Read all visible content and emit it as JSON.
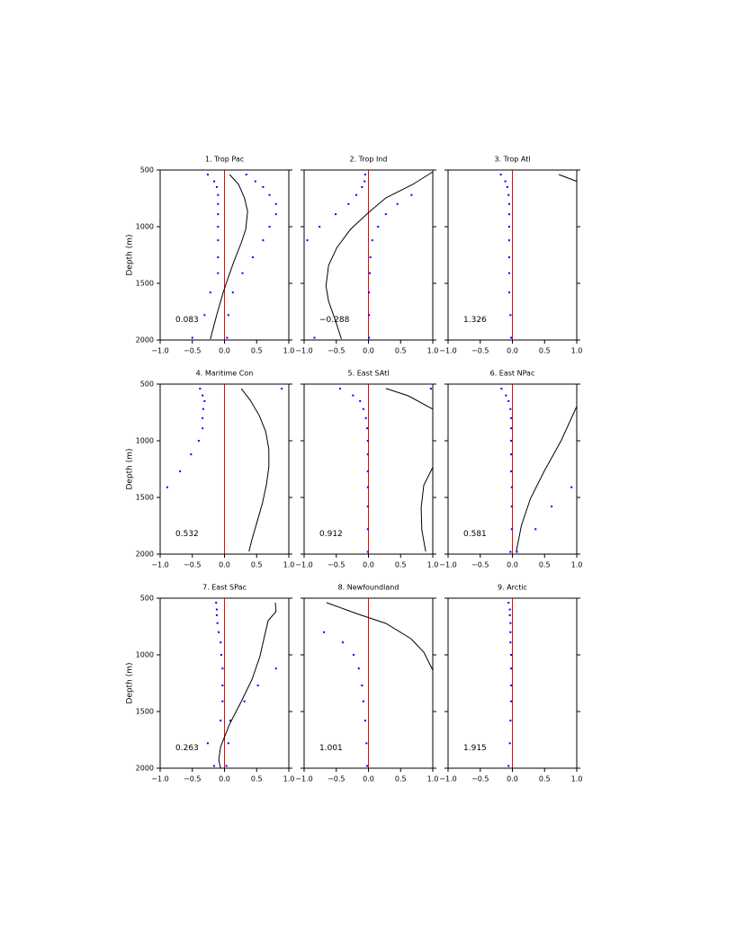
{
  "chart_data": [
    {
      "type": "profile",
      "title": "1. Trop Pac",
      "ylabel": "Depth (m)",
      "annotation": "0.083",
      "xlim": [
        -1,
        1
      ],
      "ylim": [
        2000,
        500
      ],
      "xticks": [
        {
          "value": -1,
          "label": "−1.0"
        },
        {
          "value": -0.5,
          "label": "−0.5"
        },
        {
          "value": 0,
          "label": "0.0"
        },
        {
          "value": 0.5,
          "label": "0.5"
        },
        {
          "value": 1,
          "label": "1.0"
        }
      ],
      "yticks": [
        500,
        1000,
        1500,
        2000
      ],
      "reference_line": {
        "x": 0,
        "color": "#ff0000"
      },
      "series": [
        {
          "style": "dots",
          "color": "#0000ff",
          "x": [
            -0.26,
            -0.16,
            -0.12,
            -0.1,
            -0.1,
            -0.1,
            -0.1,
            -0.1,
            -0.1,
            -0.1,
            -0.22,
            -0.31,
            -0.5
          ],
          "y": [
            540,
            600,
            650,
            720,
            800,
            890,
            1000,
            1120,
            1270,
            1410,
            1580,
            1780,
            1980
          ]
        },
        {
          "style": "dots",
          "color": "#0000ff",
          "x": [
            0.34,
            0.48,
            0.6,
            0.7,
            0.8,
            0.8,
            0.7,
            0.6,
            0.44,
            0.28,
            0.13,
            0.06,
            0.04
          ],
          "y": [
            540,
            600,
            650,
            720,
            800,
            890,
            1000,
            1120,
            1270,
            1410,
            1580,
            1780,
            1980
          ]
        },
        {
          "style": "line",
          "color": "#000000",
          "x": [
            0.08,
            0.22,
            0.31,
            0.36,
            0.33,
            0.26,
            0.15,
            0.05,
            -0.02,
            -0.12,
            -0.22
          ],
          "y": [
            540,
            627,
            746,
            865,
            1024,
            1143,
            1302,
            1460,
            1579,
            1778,
            1992
          ]
        }
      ]
    },
    {
      "type": "profile",
      "title": "2. Trop Ind",
      "annotation": "−0.288",
      "xlim": [
        -1,
        1
      ],
      "ylim": [
        2000,
        500
      ],
      "xticks": [
        {
          "value": -1,
          "label": "−1.0"
        },
        {
          "value": -0.5,
          "label": "−0.5"
        },
        {
          "value": 0,
          "label": "0.0"
        },
        {
          "value": 0.5,
          "label": "0.5"
        },
        {
          "value": 1,
          "label": "1.0"
        }
      ],
      "yticks": [
        500,
        1000,
        1500,
        2000
      ],
      "reference_line": {
        "x": 0,
        "color": "#ff0000"
      },
      "series": [
        {
          "style": "dots",
          "color": "#0000ff",
          "x": [
            -0.05,
            -0.06,
            -0.1,
            -0.19,
            -0.31,
            -0.51,
            -0.76,
            -0.95,
            0.03,
            0.02,
            0.01,
            0.01,
            -0.84
          ],
          "y": [
            540,
            600,
            650,
            720,
            800,
            890,
            1000,
            1120,
            1270,
            1410,
            1580,
            1780,
            1980
          ]
        },
        {
          "style": "dots",
          "color": "#0000ff",
          "x": [
            0.67,
            0.45,
            0.27,
            0.15,
            0.06,
            0.01
          ],
          "y": [
            720,
            800,
            890,
            1000,
            1120,
            1980
          ]
        },
        {
          "style": "line",
          "color": "#000000",
          "x": [
            1.0,
            0.69,
            0.27,
            -0.01,
            -0.28,
            -0.49,
            -0.62,
            -0.66,
            -0.62,
            -0.52,
            -0.42
          ],
          "y": [
            516,
            627,
            746,
            881,
            1024,
            1183,
            1341,
            1524,
            1659,
            1817,
            1992
          ]
        }
      ]
    },
    {
      "type": "profile",
      "title": "3. Trop Atl",
      "annotation": "1.326",
      "xlim": [
        -1,
        1
      ],
      "ylim": [
        2000,
        500
      ],
      "xticks": [
        {
          "value": -1,
          "label": "−1.0"
        },
        {
          "value": -0.5,
          "label": "−0.5"
        },
        {
          "value": 0,
          "label": "0.0"
        },
        {
          "value": 0.5,
          "label": "0.5"
        },
        {
          "value": 1,
          "label": "1.0"
        }
      ],
      "yticks": [
        500,
        1000,
        1500,
        2000
      ],
      "reference_line": {
        "x": 0,
        "color": "#ff0000"
      },
      "series": [
        {
          "style": "dots",
          "color": "#0000ff",
          "x": [
            -0.18,
            -0.11,
            -0.08,
            -0.06,
            -0.05,
            -0.05,
            -0.05,
            -0.05,
            -0.05,
            -0.05,
            -0.05,
            -0.03,
            -0.02
          ],
          "y": [
            540,
            600,
            650,
            720,
            800,
            890,
            1000,
            1120,
            1270,
            1410,
            1580,
            1780,
            1980
          ]
        },
        {
          "style": "line",
          "color": "#000000",
          "x": [
            0.72,
            1.0
          ],
          "y": [
            540,
            600
          ]
        }
      ]
    },
    {
      "type": "profile",
      "title": "4. Maritime Con",
      "ylabel": "Depth (m)",
      "annotation": "0.532",
      "xlim": [
        -1,
        1
      ],
      "ylim": [
        2000,
        500
      ],
      "xticks": [
        {
          "value": -1,
          "label": "−1.0"
        },
        {
          "value": -0.5,
          "label": "−0.5"
        },
        {
          "value": 0,
          "label": "0.0"
        },
        {
          "value": 0.5,
          "label": "0.5"
        },
        {
          "value": 1,
          "label": "1.0"
        }
      ],
      "yticks": [
        500,
        1000,
        1500,
        2000
      ],
      "reference_line": {
        "x": 0,
        "color": "#ff0000"
      },
      "series": [
        {
          "style": "dots",
          "color": "#0000ff",
          "x": [
            -0.38,
            -0.34,
            -0.31,
            -0.33,
            -0.34,
            -0.34,
            -0.4,
            -0.52,
            -0.69,
            -0.89
          ],
          "y": [
            540,
            600,
            650,
            720,
            800,
            890,
            1000,
            1120,
            1270,
            1410
          ]
        },
        {
          "style": "dots",
          "color": "#0000ff",
          "x": [
            0.89
          ],
          "y": [
            540
          ]
        },
        {
          "style": "line",
          "color": "#000000",
          "x": [
            0.26,
            0.4,
            0.54,
            0.64,
            0.69,
            0.69,
            0.65,
            0.59,
            0.51,
            0.43,
            0.38
          ],
          "y": [
            539,
            642,
            776,
            918,
            1076,
            1234,
            1392,
            1550,
            1708,
            1866,
            1976
          ]
        }
      ]
    },
    {
      "type": "profile",
      "title": "5. East SAtl",
      "annotation": "0.912",
      "xlim": [
        -1,
        1
      ],
      "ylim": [
        2000,
        500
      ],
      "xticks": [
        {
          "value": -1,
          "label": "−1.0"
        },
        {
          "value": -0.5,
          "label": "−0.5"
        },
        {
          "value": 0,
          "label": "0.0"
        },
        {
          "value": 0.5,
          "label": "0.5"
        },
        {
          "value": 1,
          "label": "1.0"
        }
      ],
      "yticks": [
        500,
        1000,
        1500,
        2000
      ],
      "reference_line": {
        "x": 0,
        "color": "#ff0000"
      },
      "series": [
        {
          "style": "dots",
          "color": "#0000ff",
          "x": [
            -0.44,
            -0.24,
            -0.13,
            -0.08,
            -0.04,
            -0.02,
            -0.01,
            -0.01,
            -0.01,
            -0.01,
            -0.01,
            -0.01,
            -0.01
          ],
          "y": [
            540,
            600,
            650,
            720,
            800,
            890,
            1000,
            1120,
            1270,
            1410,
            1580,
            1780,
            1980
          ]
        },
        {
          "style": "dots",
          "color": "#0000ff",
          "x": [
            0.97
          ],
          "y": [
            540
          ]
        },
        {
          "style": "line",
          "color": "#000000",
          "x": [
            0.27,
            0.62,
            1.0,
            null,
            1.0,
            0.86,
            0.82,
            0.83,
            0.89
          ],
          "y": [
            539,
            603,
            721,
            null,
            1234,
            1392,
            1589,
            1787,
            1976
          ]
        }
      ]
    },
    {
      "type": "profile",
      "title": "6. East NPac",
      "annotation": "0.581",
      "xlim": [
        -1,
        1
      ],
      "ylim": [
        2000,
        500
      ],
      "xticks": [
        {
          "value": -1,
          "label": "−1.0"
        },
        {
          "value": -0.5,
          "label": "−0.5"
        },
        {
          "value": 0,
          "label": "0.0"
        },
        {
          "value": 0.5,
          "label": "0.5"
        },
        {
          "value": 1,
          "label": "1.0"
        }
      ],
      "yticks": [
        500,
        1000,
        1500,
        2000
      ],
      "reference_line": {
        "x": 0,
        "color": "#ff0000"
      },
      "series": [
        {
          "style": "dots",
          "color": "#0000ff",
          "x": [
            -0.17,
            -0.1,
            -0.06,
            -0.03,
            -0.02,
            -0.02,
            -0.02,
            -0.02,
            -0.02,
            -0.01,
            -0.01,
            -0.01,
            -0.03
          ],
          "y": [
            540,
            600,
            650,
            720,
            800,
            890,
            1000,
            1120,
            1270,
            1410,
            1580,
            1780,
            1980
          ]
        },
        {
          "style": "dots",
          "color": "#0000ff",
          "x": [
            0.92,
            0.61,
            0.36,
            0.07
          ],
          "y": [
            1410,
            1580,
            1780,
            1980
          ]
        },
        {
          "style": "line",
          "color": "#000000",
          "x": [
            1.0,
            0.76,
            0.49,
            0.28,
            0.14,
            0.06
          ],
          "y": [
            697,
            997,
            1274,
            1511,
            1747,
            1976
          ]
        }
      ]
    },
    {
      "type": "profile",
      "title": "7. East SPac",
      "ylabel": "Depth (m)",
      "annotation": "0.263",
      "xlim": [
        -1,
        1
      ],
      "ylim": [
        2000,
        500
      ],
      "xticks": [
        {
          "value": -1,
          "label": "−1.0"
        },
        {
          "value": -0.5,
          "label": "−0.5"
        },
        {
          "value": 0,
          "label": "0.0"
        },
        {
          "value": 0.5,
          "label": "0.5"
        },
        {
          "value": 1,
          "label": "1.0"
        }
      ],
      "yticks": [
        500,
        1000,
        1500,
        2000
      ],
      "reference_line": {
        "x": 0,
        "color": "#ff0000"
      },
      "series": [
        {
          "style": "dots",
          "color": "#0000ff",
          "x": [
            -0.13,
            -0.12,
            -0.12,
            -0.11,
            -0.09,
            -0.06,
            -0.05,
            -0.03,
            -0.03,
            -0.03,
            -0.06,
            -0.26,
            -0.16
          ],
          "y": [
            540,
            600,
            650,
            720,
            800,
            890,
            1000,
            1120,
            1270,
            1410,
            1580,
            1780,
            1980
          ]
        },
        {
          "style": "dots",
          "color": "#0000ff",
          "x": [
            0.8,
            0.52,
            0.31,
            0.09,
            0.06,
            0.03
          ],
          "y": [
            1120,
            1270,
            1410,
            1580,
            1780,
            1980
          ]
        },
        {
          "style": "line",
          "color": "#000000",
          "x": [
            0.79,
            0.8,
            0.68,
            0.63,
            0.55,
            0.43,
            0.26,
            0.08,
            -0.06,
            -0.09,
            -0.06
          ],
          "y": [
            540,
            619,
            698,
            817,
            1016,
            1214,
            1413,
            1611,
            1810,
            1929,
            2000
          ]
        }
      ]
    },
    {
      "type": "profile",
      "title": "8. Newfoundland",
      "annotation": "1.001",
      "xlim": [
        -1,
        1
      ],
      "ylim": [
        2000,
        500
      ],
      "xticks": [
        {
          "value": -1,
          "label": "−1.0"
        },
        {
          "value": -0.5,
          "label": "−0.5"
        },
        {
          "value": 0,
          "label": "0.0"
        },
        {
          "value": 0.5,
          "label": "0.5"
        },
        {
          "value": 1,
          "label": "1.0"
        }
      ],
      "yticks": [
        500,
        1000,
        1500,
        2000
      ],
      "reference_line": {
        "x": 0,
        "color": "#ff0000"
      },
      "series": [
        {
          "style": "dots",
          "color": "#0000ff",
          "x": [
            -0.69,
            -0.4,
            -0.23,
            -0.15,
            -0.1,
            -0.08,
            -0.05,
            -0.03,
            -0.02
          ],
          "y": [
            800,
            890,
            1000,
            1120,
            1270,
            1410,
            1580,
            1780,
            1980
          ]
        },
        {
          "style": "line",
          "color": "#000000",
          "x": [
            -0.65,
            -0.15,
            0.27,
            0.66,
            0.86,
            1.0
          ],
          "y": [
            540,
            643,
            722,
            857,
            976,
            1135
          ]
        }
      ]
    },
    {
      "type": "profile",
      "title": "9. Arctic",
      "annotation": "1.915",
      "xlim": [
        -1,
        1
      ],
      "ylim": [
        2000,
        500
      ],
      "xticks": [
        {
          "value": -1,
          "label": "−1.0"
        },
        {
          "value": -0.5,
          "label": "−0.5"
        },
        {
          "value": 0,
          "label": "0.0"
        },
        {
          "value": 0.5,
          "label": "0.5"
        },
        {
          "value": 1,
          "label": "1.0"
        }
      ],
      "yticks": [
        500,
        1000,
        1500,
        2000
      ],
      "reference_line": {
        "x": 0,
        "color": "#ff0000"
      },
      "series": [
        {
          "style": "dots",
          "color": "#0000ff",
          "x": [
            -0.06,
            -0.04,
            -0.04,
            -0.03,
            -0.03,
            -0.03,
            -0.02,
            -0.02,
            -0.02,
            -0.02,
            -0.03,
            -0.04,
            -0.06
          ],
          "y": [
            540,
            600,
            650,
            720,
            800,
            890,
            1000,
            1120,
            1270,
            1410,
            1580,
            1780,
            1980
          ]
        }
      ]
    }
  ]
}
